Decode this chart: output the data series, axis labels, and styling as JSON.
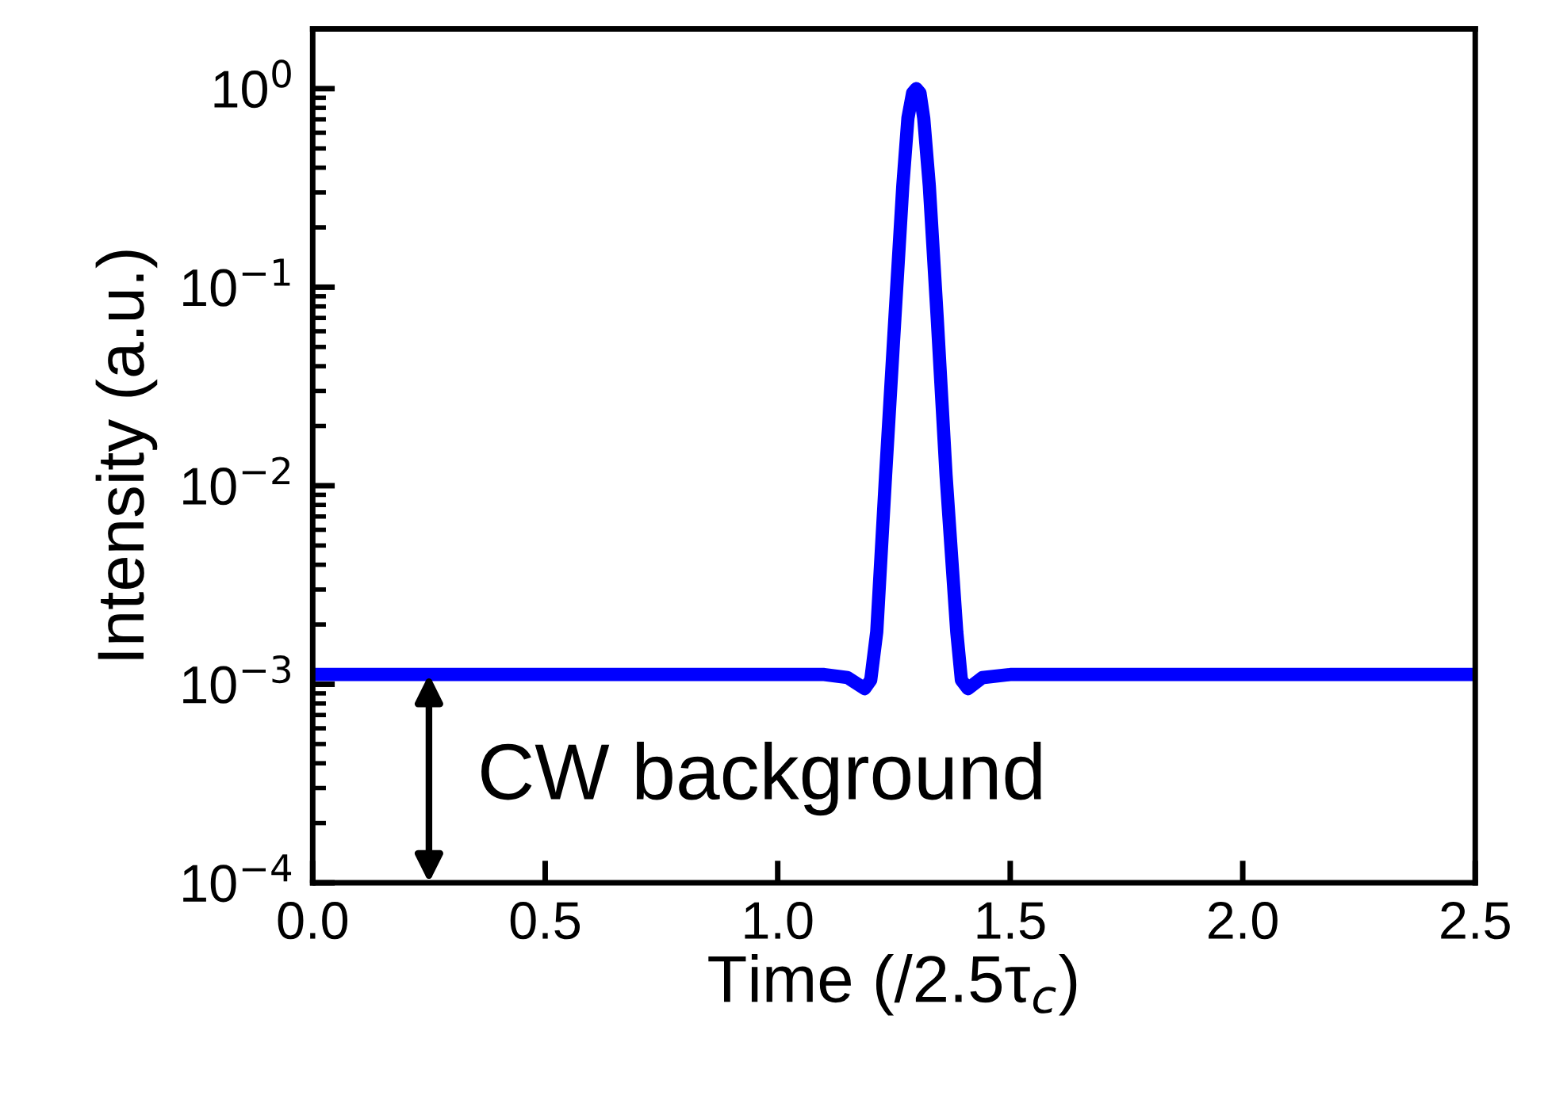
{
  "chart_data": {
    "type": "line",
    "xlabel": "Time (/2.5τ$_{c}$)",
    "ylabel": "Intensity (a.u.)",
    "log": "y",
    "xlim": [
      0,
      2.5
    ],
    "ylim": [
      0.0001,
      2
    ],
    "xticks": [
      {
        "value": 0,
        "label": "0.0"
      },
      0.5,
      {
        "value": 1,
        "label": "1.0"
      },
      1.5,
      {
        "value": 2,
        "label": "2.0"
      },
      2.5
    ],
    "yticks": [
      {
        "value": 0.0001,
        "label": "10$^{−4}$"
      },
      {
        "value": 0.001,
        "label": "10$^{−3}$"
      },
      {
        "value": 0.01,
        "label": "10$^{−2}$"
      },
      {
        "value": 0.1,
        "label": "10$^{−1}$"
      },
      {
        "value": 1,
        "label": "10$^{0}$"
      }
    ],
    "grid": false,
    "legend": false,
    "marker": "none",
    "line_style": "solid",
    "series": [
      {
        "color": "#0000ff",
        "x": [
          0,
          0.5,
          1.0,
          1.1,
          1.15,
          1.187,
          1.2,
          1.213,
          1.232,
          1.252,
          1.269,
          1.28,
          1.29,
          1.298,
          1.306,
          1.314,
          1.326,
          1.343,
          1.362,
          1.385,
          1.395,
          1.409,
          1.44,
          1.5,
          2.0,
          2.5
        ],
        "values": [
          0.00112,
          0.00112,
          0.00112,
          0.00112,
          0.00108,
          0.00095,
          0.00105,
          0.00184,
          0.0113,
          0.07,
          0.324,
          0.71,
          0.95,
          1.0,
          0.95,
          0.71,
          0.324,
          0.07,
          0.0113,
          0.00184,
          0.00105,
          0.00095,
          0.00108,
          0.00112,
          0.00112,
          0.00112
        ]
      }
    ],
    "annotations": [
      {
        "text": "CW background",
        "x": 0.25,
        "y": 0.00112
      }
    ]
  }
}
